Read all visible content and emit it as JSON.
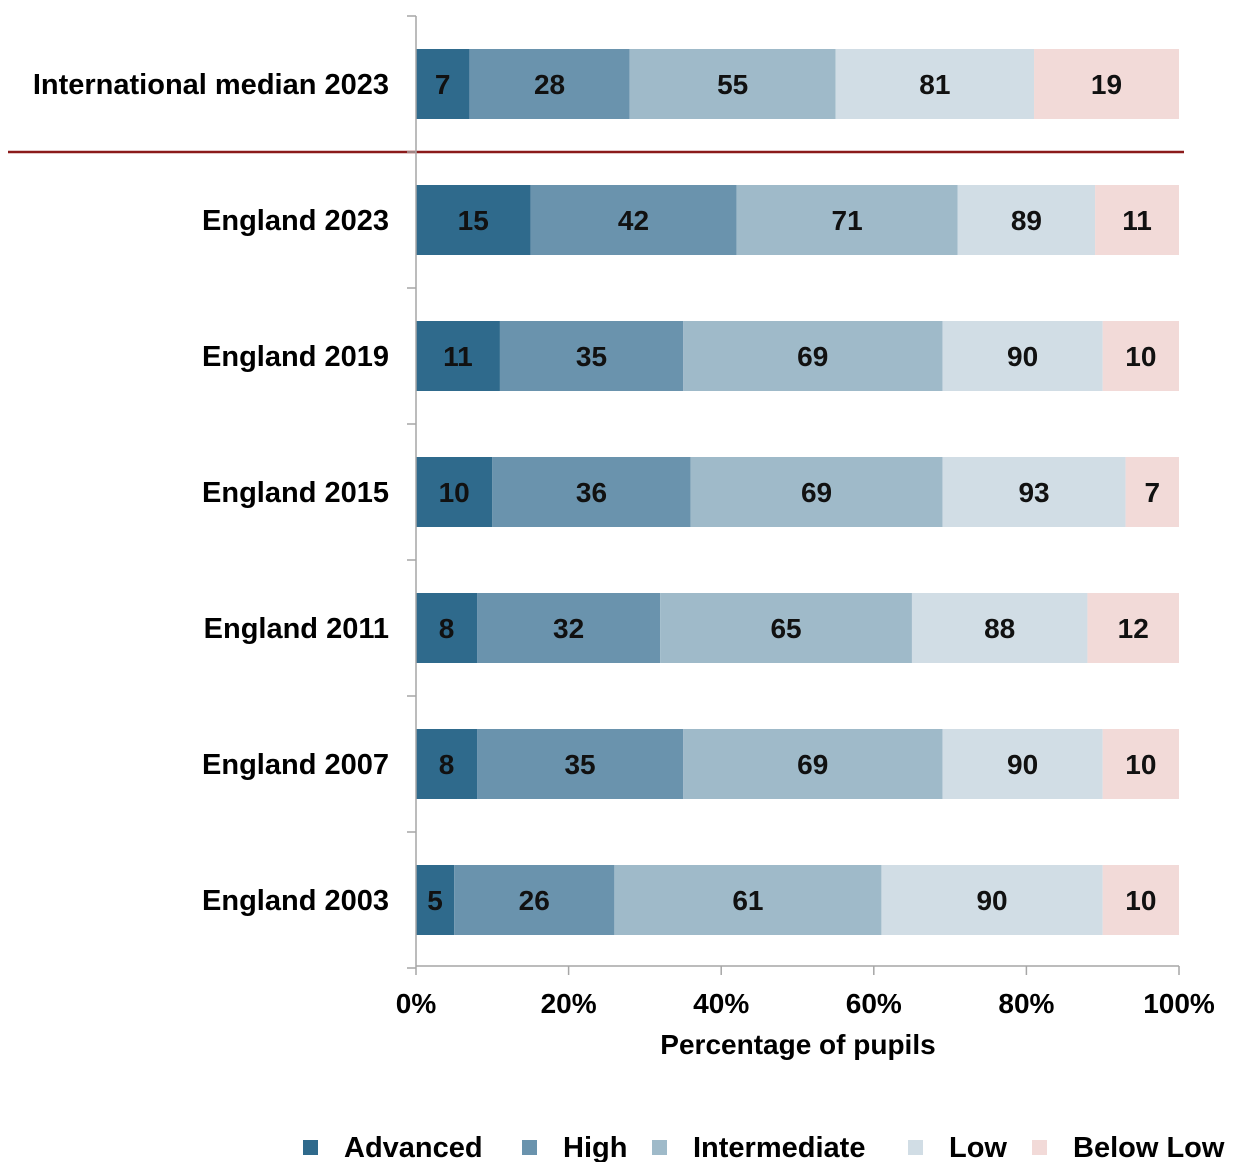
{
  "chart_data": {
    "type": "bar",
    "orientation": "horizontal",
    "stacked": true,
    "categories": [
      "International median 2023",
      "England 2023",
      "England 2019",
      "England 2015",
      "England 2011",
      "England 2007",
      "England 2003"
    ],
    "series": [
      {
        "name": "Advanced",
        "color": "#2f6a8c",
        "labels": [
          7,
          15,
          11,
          10,
          8,
          8,
          5
        ],
        "values": [
          7,
          15,
          11,
          10,
          8,
          8,
          5
        ]
      },
      {
        "name": "High",
        "color": "#6a93ad",
        "labels": [
          28,
          42,
          35,
          36,
          32,
          35,
          26
        ],
        "values": [
          21,
          27,
          24,
          26,
          24,
          27,
          21
        ]
      },
      {
        "name": "Intermediate",
        "color": "#9fbac9",
        "labels": [
          55,
          71,
          69,
          69,
          65,
          69,
          61
        ],
        "values": [
          27,
          29,
          34,
          33,
          33,
          34,
          35
        ]
      },
      {
        "name": "Low",
        "color": "#d1dde5",
        "labels": [
          81,
          89,
          90,
          93,
          88,
          90,
          90
        ],
        "values": [
          26,
          18,
          21,
          24,
          23,
          21,
          29
        ]
      },
      {
        "name": "Below Low",
        "color": "#f2dad8",
        "labels": [
          19,
          11,
          10,
          7,
          12,
          10,
          10
        ],
        "values": [
          19,
          11,
          10,
          7,
          12,
          10,
          10
        ]
      }
    ],
    "xlabel": "Percentage of pupils",
    "x_ticks": [
      "0%",
      "20%",
      "40%",
      "60%",
      "80%",
      "100%"
    ],
    "xlim": [
      0,
      100
    ],
    "legend_position": "bottom",
    "separator_color": "#8b1a1a",
    "grid": false
  }
}
